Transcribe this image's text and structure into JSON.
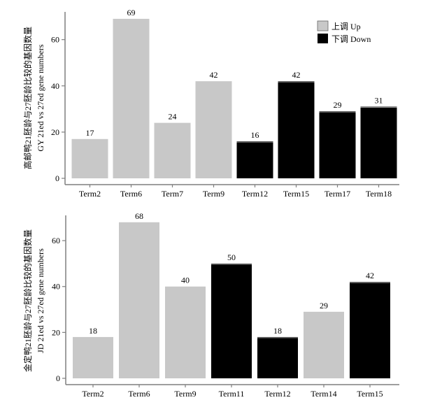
{
  "legend": {
    "items": [
      {
        "label": "上调 Up",
        "color": "#c8c8c8"
      },
      {
        "label": "下调 Down",
        "color": "#000000"
      }
    ]
  },
  "colors": {
    "up": "#c8c8c8",
    "down": "#000000",
    "axis": "#7f7f7f"
  },
  "chart_data": [
    {
      "type": "bar",
      "ylabel_line1": "高邮鸭21胚龄与27胚龄比较的基因数量",
      "ylabel_line2": "GY 21ed vs 27ed gene numbers",
      "categories": [
        "Term2",
        "Term6",
        "Term7",
        "Term9",
        "Term12",
        "Term15",
        "Term17",
        "Term18"
      ],
      "values": [
        17,
        69,
        24,
        42,
        16,
        42,
        29,
        31
      ],
      "direction": [
        "up",
        "up",
        "up",
        "up",
        "down",
        "down",
        "down",
        "down"
      ],
      "yticks": [
        0,
        20,
        40,
        60
      ],
      "ylim": [
        0,
        72
      ],
      "legend_position": "top-right",
      "grid": false
    },
    {
      "type": "bar",
      "ylabel_line1": "金定鸭21胚龄与27胚龄比较的基因数量",
      "ylabel_line2": "JD 21ed vs 27ed gene numbers",
      "categories": [
        "Term2",
        "Term6",
        "Term9",
        "Term11",
        "Term12",
        "Term14",
        "Term15"
      ],
      "values": [
        18,
        68,
        40,
        50,
        18,
        29,
        42
      ],
      "direction": [
        "up",
        "up",
        "up",
        "down",
        "down",
        "up",
        "down"
      ],
      "yticks": [
        0,
        20,
        40,
        60
      ],
      "ylim": [
        0,
        71
      ],
      "grid": false
    }
  ]
}
